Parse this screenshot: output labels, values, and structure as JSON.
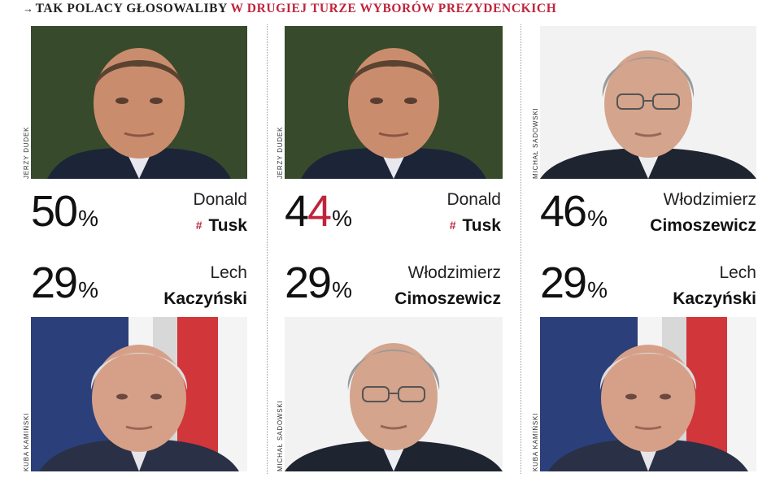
{
  "header": {
    "arrow": "→",
    "prefix": "TAK POLACY GŁOSOWALIBY",
    "highlight": "W DRUGIEJ TURZE WYBORÓW PREZYDENCKICH"
  },
  "colors": {
    "accent": "#c0243b",
    "text": "#111111",
    "divider": "#9a9a9a"
  },
  "scenarios": [
    {
      "top": {
        "percent_a": "50",
        "percent_b": "",
        "percent_highlight": "",
        "sign": "%",
        "first_name": "Donald",
        "last_name": "Tusk",
        "marker": "#",
        "photo_credit": "JERZY DUDEK",
        "photo": "tusk"
      },
      "bottom": {
        "percent_a": "29",
        "percent_b": "",
        "percent_highlight": "",
        "sign": "%",
        "first_name": "Lech",
        "last_name": "Kaczyński",
        "marker": "",
        "photo_credit": "KUBA KAMIŃSKI",
        "photo": "kaczynski"
      }
    },
    {
      "top": {
        "percent_a": "4",
        "percent_b": "",
        "percent_highlight": "4",
        "sign": "%",
        "first_name": "Donald",
        "last_name": "Tusk",
        "marker": "#",
        "photo_credit": "JERZY DUDEK",
        "photo": "tusk"
      },
      "bottom": {
        "percent_a": "29",
        "percent_b": "",
        "percent_highlight": "",
        "sign": "%",
        "first_name": "Włodzimierz",
        "last_name": "Cimoszewicz",
        "marker": "",
        "photo_credit": "MICHAŁ SADOWSKI",
        "photo": "cimoszewicz"
      }
    },
    {
      "top": {
        "percent_a": "46",
        "percent_b": "",
        "percent_highlight": "",
        "sign": "%",
        "first_name": "Włodzimierz",
        "last_name": "Cimoszewicz",
        "marker": "",
        "photo_credit": "MICHAŁ SADOWSKI",
        "photo": "cimoszewicz"
      },
      "bottom": {
        "percent_a": "29",
        "percent_b": "",
        "percent_highlight": "",
        "sign": "%",
        "first_name": "Lech",
        "last_name": "Kaczyński",
        "marker": "",
        "photo_credit": "KUBA KAMIŃSKI",
        "photo": "kaczynski"
      }
    }
  ]
}
